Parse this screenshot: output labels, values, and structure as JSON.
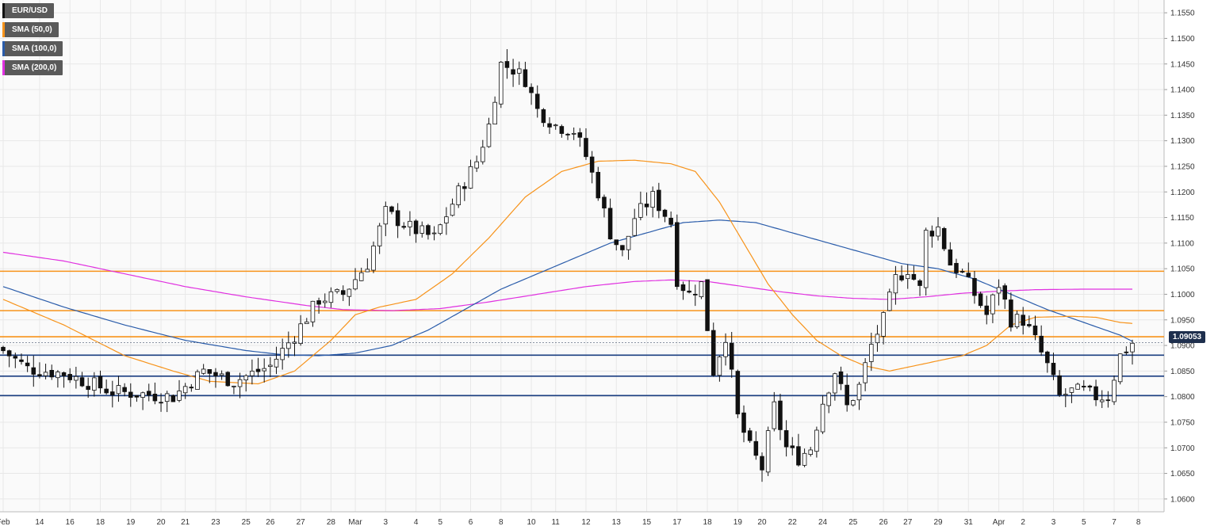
{
  "chart_data": {
    "type": "candlestick",
    "symbol": "EUR/USD",
    "legend": [
      {
        "label": "EUR/USD",
        "color": "#111111"
      },
      {
        "label": "SMA (50,0)",
        "color": "#f7931a"
      },
      {
        "label": "SMA (100,0)",
        "color": "#2a5caa"
      },
      {
        "label": "SMA (200,0)",
        "color": "#e030e0"
      }
    ],
    "last_price": "1.09053",
    "ylim": [
      1.0575,
      1.1575
    ],
    "y_ticks": [
      "1.1550",
      "1.1500",
      "1.1450",
      "1.1400",
      "1.1350",
      "1.1300",
      "1.1250",
      "1.1200",
      "1.1150",
      "1.1100",
      "1.1050",
      "1.1000",
      "1.0950",
      "1.0900",
      "1.0850",
      "1.0800",
      "1.0750",
      "1.0700",
      "1.0650",
      "1.0600"
    ],
    "x_ticks": [
      {
        "label": "Feb",
        "i": 0
      },
      {
        "label": "14",
        "i": 6
      },
      {
        "label": "16",
        "i": 11
      },
      {
        "label": "18",
        "i": 16
      },
      {
        "label": "19",
        "i": 21
      },
      {
        "label": "20",
        "i": 26
      },
      {
        "label": "21",
        "i": 30
      },
      {
        "label": "23",
        "i": 35
      },
      {
        "label": "25",
        "i": 40
      },
      {
        "label": "26",
        "i": 44
      },
      {
        "label": "27",
        "i": 49
      },
      {
        "label": "28",
        "i": 54
      },
      {
        "label": "Mar",
        "i": 58
      },
      {
        "label": "3",
        "i": 63
      },
      {
        "label": "4",
        "i": 68
      },
      {
        "label": "5",
        "i": 72
      },
      {
        "label": "6",
        "i": 77
      },
      {
        "label": "8",
        "i": 82
      },
      {
        "label": "10",
        "i": 87
      },
      {
        "label": "11",
        "i": 91
      },
      {
        "label": "12",
        "i": 96
      },
      {
        "label": "13",
        "i": 101
      },
      {
        "label": "15",
        "i": 106
      },
      {
        "label": "17",
        "i": 111
      },
      {
        "label": "18",
        "i": 116
      },
      {
        "label": "19",
        "i": 121
      },
      {
        "label": "20",
        "i": 125
      },
      {
        "label": "22",
        "i": 130
      },
      {
        "label": "24",
        "i": 135
      },
      {
        "label": "25",
        "i": 140
      },
      {
        "label": "26",
        "i": 145
      },
      {
        "label": "27",
        "i": 149
      },
      {
        "label": "29",
        "i": 154
      },
      {
        "label": "31",
        "i": 159
      },
      {
        "label": "Apr",
        "i": 164
      },
      {
        "label": "2",
        "i": 168
      },
      {
        "label": "3",
        "i": 173
      },
      {
        "label": "5",
        "i": 178
      },
      {
        "label": "7",
        "i": 183
      },
      {
        "label": "8",
        "i": 187
      }
    ],
    "horizontal_levels": [
      {
        "value": 1.1045,
        "color": "#f7931a"
      },
      {
        "value": 1.0968,
        "color": "#f7931a"
      },
      {
        "value": 1.0917,
        "color": "#f7931a"
      },
      {
        "value": 1.0881,
        "color": "#1a3d80"
      },
      {
        "value": 1.084,
        "color": "#1a3d80"
      },
      {
        "value": 1.0802,
        "color": "#1a3d80"
      }
    ],
    "close_anchors": [
      [
        0,
        1.089
      ],
      [
        4,
        1.0855
      ],
      [
        10,
        1.0845
      ],
      [
        18,
        1.081
      ],
      [
        28,
        1.08
      ],
      [
        33,
        1.085
      ],
      [
        38,
        1.083
      ],
      [
        44,
        1.086
      ],
      [
        48,
        1.092
      ],
      [
        52,
        1.099
      ],
      [
        56,
        1.1
      ],
      [
        60,
        1.106
      ],
      [
        63,
        1.116
      ],
      [
        67,
        1.113
      ],
      [
        71,
        1.111
      ],
      [
        75,
        1.12
      ],
      [
        78,
        1.126
      ],
      [
        80,
        1.133
      ],
      [
        82,
        1.145
      ],
      [
        84,
        1.144
      ],
      [
        86,
        1.142
      ],
      [
        88,
        1.136
      ],
      [
        91,
        1.133
      ],
      [
        94,
        1.132
      ],
      [
        96,
        1.127
      ],
      [
        98,
        1.12
      ],
      [
        100,
        1.112
      ],
      [
        102,
        1.108
      ],
      [
        104,
        1.115
      ],
      [
        107,
        1.119
      ],
      [
        110,
        1.114
      ],
      [
        111,
        1.103
      ],
      [
        113,
        1.1
      ],
      [
        115,
        1.102
      ],
      [
        117,
        1.085
      ],
      [
        119,
        1.092
      ],
      [
        121,
        1.076
      ],
      [
        123,
        1.07
      ],
      [
        125,
        1.066
      ],
      [
        127,
        1.078
      ],
      [
        129,
        1.07
      ],
      [
        131,
        1.068
      ],
      [
        133,
        1.07
      ],
      [
        135,
        1.079
      ],
      [
        137,
        1.085
      ],
      [
        139,
        1.078
      ],
      [
        141,
        1.082
      ],
      [
        143,
        1.09
      ],
      [
        145,
        1.095
      ],
      [
        147,
        1.103
      ],
      [
        149,
        1.105
      ],
      [
        151,
        1.101
      ],
      [
        152,
        1.112
      ],
      [
        154,
        1.113
      ],
      [
        156,
        1.106
      ],
      [
        158,
        1.104
      ],
      [
        160,
        1.1
      ],
      [
        162,
        1.096
      ],
      [
        164,
        1.102
      ],
      [
        166,
        1.095
      ],
      [
        168,
        1.095
      ],
      [
        170,
        1.091
      ],
      [
        172,
        1.086
      ],
      [
        174,
        1.08
      ],
      [
        176,
        1.081
      ],
      [
        178,
        1.081
      ],
      [
        180,
        1.08
      ],
      [
        182,
        1.08
      ],
      [
        184,
        1.088
      ],
      [
        186,
        1.0905
      ]
    ],
    "sma50_path": [
      [
        0,
        1.099
      ],
      [
        10,
        1.094
      ],
      [
        20,
        1.088
      ],
      [
        28,
        1.085
      ],
      [
        34,
        1.083
      ],
      [
        42,
        1.0825
      ],
      [
        48,
        1.085
      ],
      [
        54,
        1.091
      ],
      [
        58,
        1.096
      ],
      [
        62,
        1.0975
      ],
      [
        68,
        1.099
      ],
      [
        74,
        1.104
      ],
      [
        80,
        1.111
      ],
      [
        86,
        1.119
      ],
      [
        92,
        1.124
      ],
      [
        98,
        1.126
      ],
      [
        104,
        1.1262
      ],
      [
        110,
        1.1255
      ],
      [
        114,
        1.124
      ],
      [
        118,
        1.118
      ],
      [
        122,
        1.11
      ],
      [
        126,
        1.102
      ],
      [
        130,
        1.096
      ],
      [
        134,
        1.091
      ],
      [
        138,
        1.088
      ],
      [
        142,
        1.086
      ],
      [
        146,
        1.085
      ],
      [
        150,
        1.086
      ],
      [
        154,
        1.087
      ],
      [
        158,
        1.088
      ],
      [
        162,
        1.09
      ],
      [
        166,
        1.094
      ],
      [
        170,
        1.0955
      ],
      [
        176,
        1.0957
      ],
      [
        180,
        1.0955
      ],
      [
        184,
        1.0945
      ],
      [
        186,
        1.0943
      ]
    ],
    "sma100_path": [
      [
        0,
        1.1015
      ],
      [
        10,
        1.0975
      ],
      [
        20,
        1.094
      ],
      [
        30,
        1.091
      ],
      [
        40,
        1.089
      ],
      [
        46,
        1.0882
      ],
      [
        52,
        1.088
      ],
      [
        58,
        1.0885
      ],
      [
        64,
        1.09
      ],
      [
        70,
        1.093
      ],
      [
        76,
        1.097
      ],
      [
        82,
        1.101
      ],
      [
        88,
        1.104
      ],
      [
        94,
        1.107
      ],
      [
        100,
        1.11
      ],
      [
        106,
        1.112
      ],
      [
        112,
        1.114
      ],
      [
        118,
        1.1145
      ],
      [
        124,
        1.114
      ],
      [
        130,
        1.112
      ],
      [
        136,
        1.11
      ],
      [
        142,
        1.108
      ],
      [
        148,
        1.106
      ],
      [
        154,
        1.105
      ],
      [
        160,
        1.103
      ],
      [
        166,
        1.1
      ],
      [
        172,
        1.097
      ],
      [
        178,
        1.0945
      ],
      [
        184,
        1.092
      ],
      [
        186,
        1.0908
      ]
    ],
    "sma200_path": [
      [
        0,
        1.1082
      ],
      [
        10,
        1.1065
      ],
      [
        20,
        1.104
      ],
      [
        30,
        1.1015
      ],
      [
        40,
        1.0995
      ],
      [
        50,
        1.0978
      ],
      [
        56,
        1.097
      ],
      [
        64,
        1.0968
      ],
      [
        72,
        1.0972
      ],
      [
        80,
        1.0985
      ],
      [
        88,
        1.1
      ],
      [
        96,
        1.1015
      ],
      [
        104,
        1.1025
      ],
      [
        110,
        1.1028
      ],
      [
        116,
        1.1025
      ],
      [
        122,
        1.1015
      ],
      [
        128,
        1.1005
      ],
      [
        134,
        1.0997
      ],
      [
        140,
        1.0992
      ],
      [
        146,
        1.099
      ],
      [
        152,
        1.0995
      ],
      [
        158,
        1.1002
      ],
      [
        164,
        1.1006
      ],
      [
        170,
        1.1009
      ],
      [
        178,
        1.101
      ],
      [
        186,
        1.101
      ]
    ]
  }
}
